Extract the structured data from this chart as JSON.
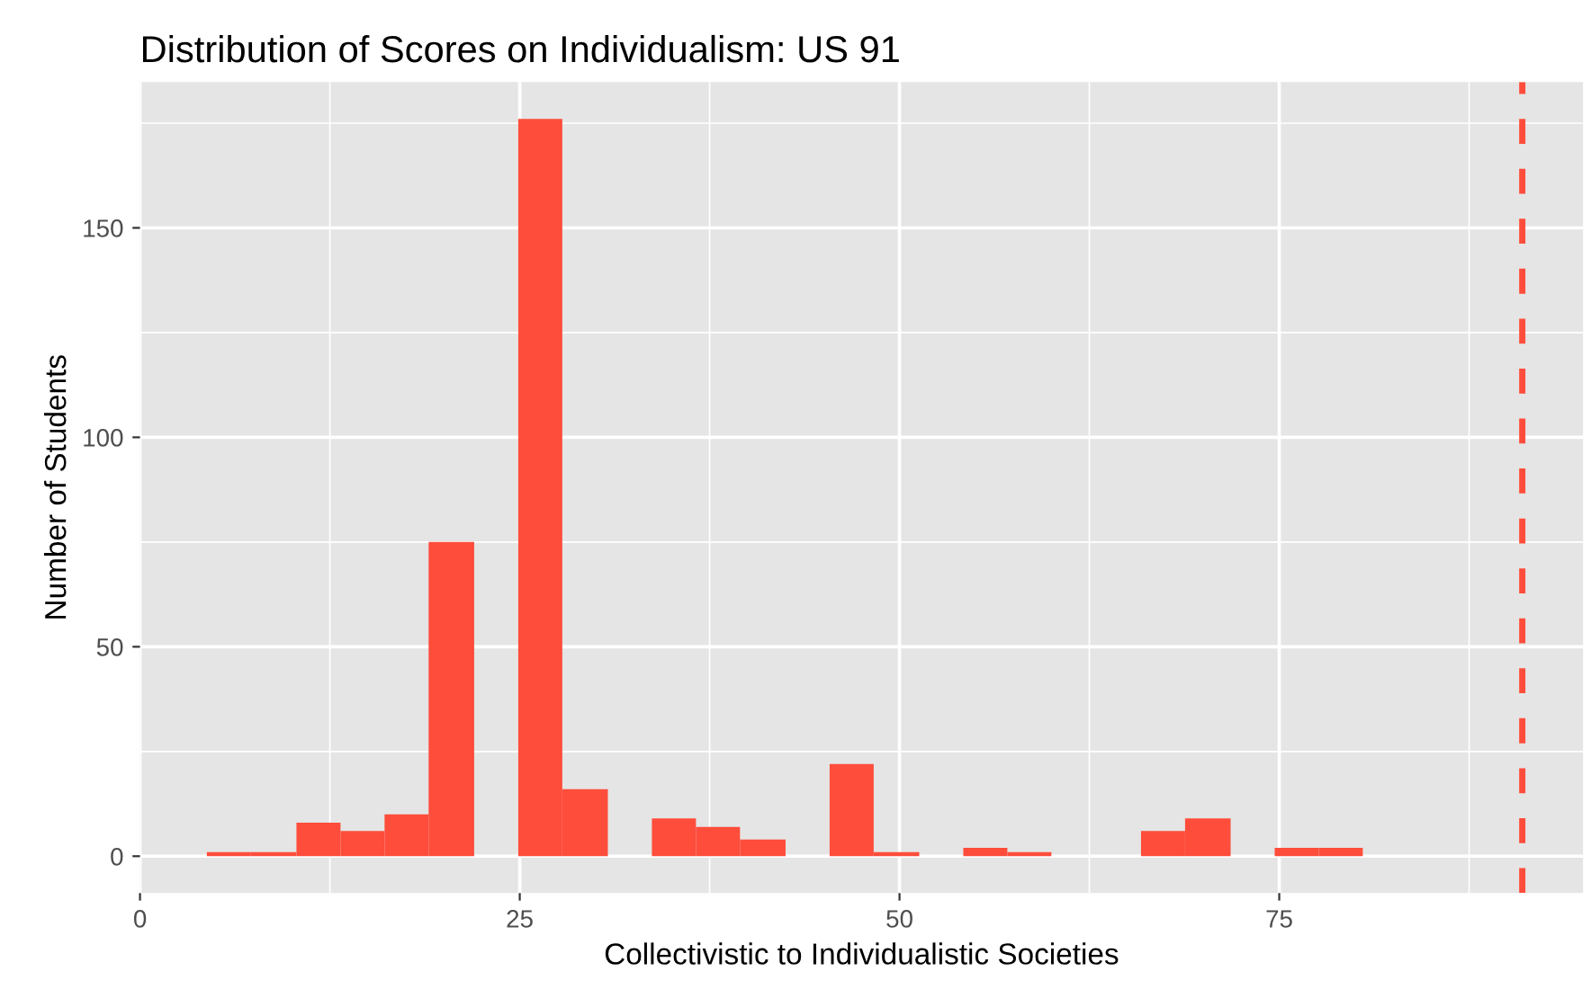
{
  "chart_data": {
    "type": "histogram",
    "title": "Distribution of Scores on Individualism: US 91",
    "xlabel": "Collectivistic to Individualistic Societies",
    "ylabel": "Number of Students",
    "bins": [
      4.4,
      7.3,
      10.3,
      13.2,
      16.1,
      19.0,
      22.0,
      24.9,
      27.8,
      30.8,
      33.7,
      36.6,
      39.5,
      42.5,
      45.4,
      48.3,
      51.3,
      54.2,
      57.1,
      60.0,
      65.9,
      68.8,
      71.8,
      74.7,
      77.6,
      80.5
    ],
    "values": [
      1,
      1,
      8,
      6,
      10,
      75,
      0,
      176,
      16,
      0,
      9,
      7,
      4,
      0,
      22,
      1,
      0,
      2,
      1,
      0,
      6,
      9,
      0,
      2,
      2
    ],
    "color": "#fe4d3b",
    "xlim": [
      0,
      95
    ],
    "ylim": [
      -8.8,
      184.8
    ],
    "xticks": [
      0,
      25,
      50,
      75
    ],
    "yticks": [
      0,
      50,
      100,
      150
    ],
    "grid": true,
    "ref_lines": [
      {
        "axis": "x",
        "value": 91,
        "color": "#fe4d3b",
        "line_style": "dashed"
      }
    ]
  }
}
